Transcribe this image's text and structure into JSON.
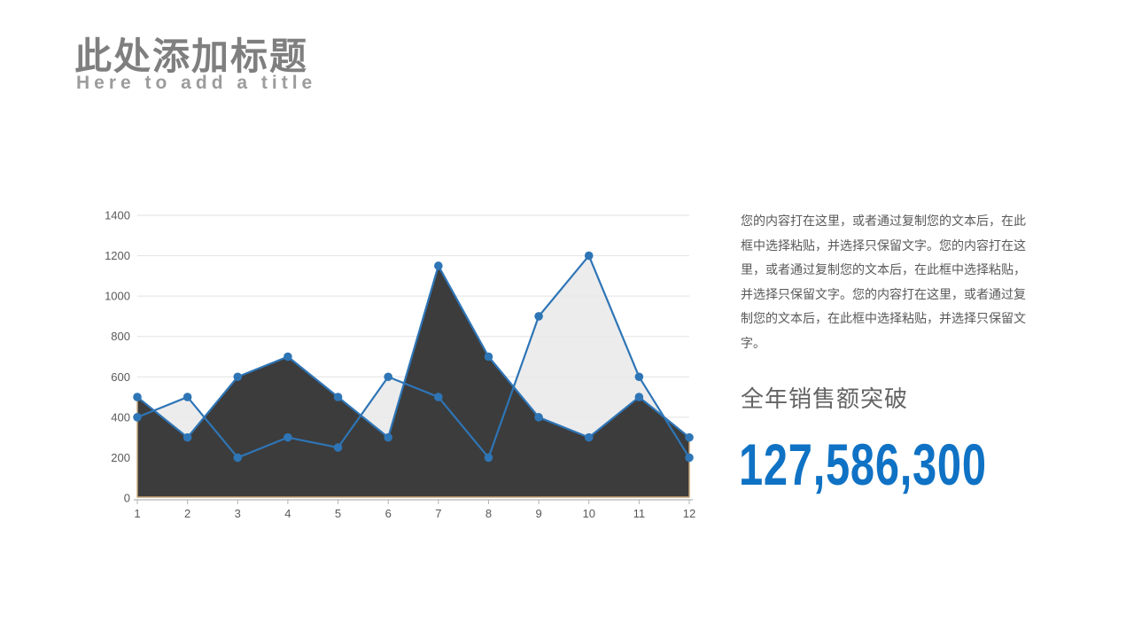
{
  "header": {
    "title_zh": "此处添加标题",
    "title_en": "Here to add a title"
  },
  "chart_data": {
    "type": "area",
    "categories": [
      "1",
      "2",
      "3",
      "4",
      "5",
      "6",
      "7",
      "8",
      "9",
      "10",
      "11",
      "12"
    ],
    "series": [
      {
        "name": "light-area-series",
        "values": [
          400,
          500,
          200,
          300,
          250,
          600,
          500,
          200,
          900,
          1200,
          600,
          200
        ],
        "fill": "#e9e9e9",
        "fill_opacity": 0.85,
        "line_color": "#2e75b6"
      },
      {
        "name": "dark-area-series",
        "values": [
          500,
          300,
          600,
          700,
          500,
          300,
          1150,
          700,
          400,
          300,
          500,
          300
        ],
        "fill": "#3c3c3c",
        "fill_opacity": 1,
        "line_color": "#2e75b6",
        "border_color": "#c8a778"
      }
    ],
    "ylim": [
      0,
      1400
    ],
    "ytick_step": 200,
    "yticks": [
      "0",
      "200",
      "400",
      "600",
      "800",
      "1000",
      "1200",
      "1400"
    ],
    "grid": "horizontal-only",
    "legend": "none",
    "marker": "circle"
  },
  "right_panel": {
    "paragraph": "您的内容打在这里，或者通过复制您的文本后，在此框中选择粘贴，并选择只保留文字。您的内容打在这里，或者通过复制您的文本后，在此框中选择粘贴，并选择只保留文字。您的内容打在这里，或者通过复制您的文本后，在此框中选择粘贴，并选择只保留文字。",
    "caption": "全年销售额突破",
    "figure": "127,586,300"
  },
  "colors": {
    "title_gray": "#7f7f7f",
    "subtitle_gray": "#9c9c9c",
    "text_gray": "#595959",
    "figure_blue": "#0f72c4",
    "line_blue": "#2e75b6",
    "dark_fill": "#3c3c3c",
    "light_fill": "#e9e9e9",
    "tan_border": "#c8a778",
    "gridline": "#e2e2e2",
    "axis": "#b3b3b3"
  }
}
